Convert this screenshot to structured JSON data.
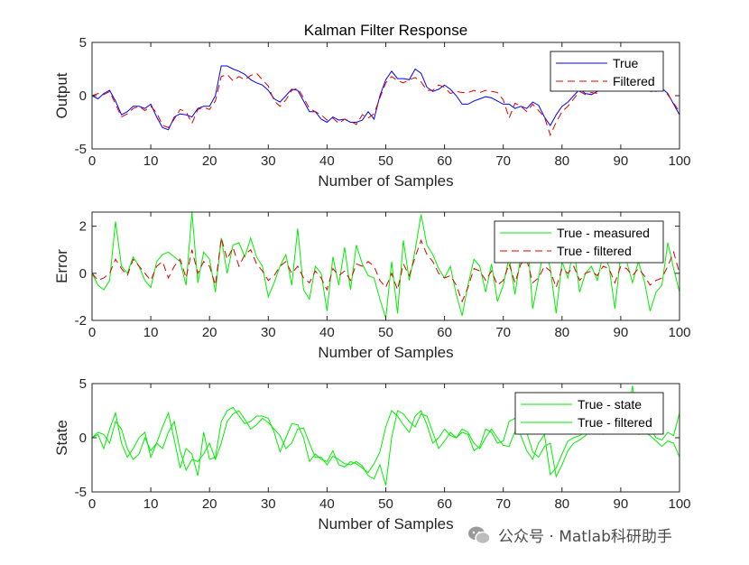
{
  "watermark": "公众号 · Matlab科研助手",
  "colors": {
    "axis": "#262626",
    "green": "#00ee00",
    "blue": "#0000ff",
    "red": "#dd0000"
  },
  "chart_data": [
    {
      "type": "line",
      "title": "Kalman Filter Response",
      "xlabel": "Number of Samples",
      "ylabel": "Output",
      "xlim": [
        0,
        100
      ],
      "ylim": [
        -5,
        5
      ],
      "xticks": [
        "0",
        "10",
        "20",
        "30",
        "40",
        "50",
        "60",
        "70",
        "80",
        "90",
        "100"
      ],
      "yticks": [
        "5",
        "0",
        "-5"
      ],
      "legend": {
        "position": "top-right",
        "entries": [
          "True",
          "Filtered"
        ]
      },
      "series": [
        {
          "name": "True",
          "color": "#0000ff",
          "dash": "",
          "values": [
            0,
            -0.3,
            0.2,
            0.5,
            -0.5,
            -1.8,
            -1.5,
            -1,
            -1,
            -1.2,
            -0.8,
            -2,
            -3,
            -3.2,
            -2,
            -1.7,
            -1.8,
            -2,
            -1.2,
            -1,
            -1,
            0,
            2.8,
            2.8,
            2.5,
            2.3,
            2,
            1.5,
            1.2,
            1,
            0.5,
            -0.3,
            -0.6,
            0,
            0.6,
            0.5,
            -0.5,
            -1.5,
            -1.5,
            -2.2,
            -2.5,
            -2,
            -2.3,
            -2.2,
            -2.5,
            -2.5,
            -2.3,
            -1.5,
            -2.2,
            0,
            1.5,
            2.3,
            1.6,
            1.6,
            1.5,
            2.5,
            2.1,
            0.8,
            0.4,
            0.6,
            1,
            0.6,
            0,
            -0.8,
            -0.8,
            -0.5,
            -0.3,
            -0.1,
            -0.2,
            -0.5,
            -0.8,
            -0.8,
            -1.2,
            -1,
            -1.2,
            -0.6,
            -0.9,
            -2,
            -2.8,
            -1.8,
            -1,
            -0.6,
            0,
            0.6,
            0.2,
            0.1,
            0.4,
            1,
            1,
            0.5,
            1.2,
            1,
            1.3,
            1.5,
            1.2,
            0.5,
            0.4,
            0.7,
            0.2,
            -0.8,
            -1.8
          ]
        },
        {
          "name": "Filtered",
          "color": "#dd0000",
          "dash": "8 5",
          "values": [
            0,
            0.2,
            0.1,
            0.4,
            -0.8,
            -2,
            -1.7,
            -1.2,
            -1,
            -1.4,
            -1,
            -1.6,
            -2.8,
            -3,
            -2.2,
            -1.3,
            -1.5,
            -2.6,
            -1.3,
            -1.1,
            -1.3,
            -0.5,
            1.8,
            2,
            1.4,
            1.8,
            1.5,
            1.9,
            2.1,
            1.5,
            0.9,
            -0.5,
            -1,
            -0.4,
            0.5,
            0.7,
            -0.2,
            -1.2,
            -1.5,
            -1.8,
            -2.3,
            -2.1,
            -2.6,
            -2.2,
            -2.4,
            -2.7,
            -1.8,
            -2.1,
            -1.7,
            -0.2,
            1.2,
            1.8,
            1.4,
            1.2,
            1.5,
            1.7,
            1.3,
            0.5,
            0.5,
            1,
            0.8,
            0.2,
            0.4,
            0.3,
            0.3,
            0.5,
            0.3,
            0.5,
            0.4,
            0.3,
            -0.4,
            -2.1,
            -0.7,
            -1,
            -1.5,
            -0.8,
            -1.4,
            -2,
            -3.7,
            -2.5,
            -1.5,
            -1,
            -0.3,
            0.4,
            0.1,
            0.3,
            0.2,
            0.9,
            0.9,
            0.4,
            1.1,
            1,
            1.2,
            1.4,
            1.1,
            0.4,
            0.4,
            0.6,
            0.1,
            -0.7,
            -1.5
          ]
        }
      ]
    },
    {
      "type": "line",
      "title": "",
      "xlabel": "Number of Samples",
      "ylabel": "Error",
      "xlim": [
        0,
        100
      ],
      "ylim": [
        -2,
        2.6
      ],
      "xticks": [
        "0",
        "10",
        "20",
        "30",
        "40",
        "50",
        "60",
        "70",
        "80",
        "90",
        "100"
      ],
      "yticks": [
        "2",
        "0",
        "-2"
      ],
      "legend": {
        "position": "top-right",
        "entries": [
          "True - measured",
          "True - filtered"
        ]
      },
      "series": [
        {
          "name": "True - measured",
          "color": "#00ee00",
          "dash": "",
          "values": [
            0,
            -0.5,
            -0.7,
            -0.3,
            2.2,
            0.3,
            0,
            0.7,
            0.3,
            -0.3,
            -0.6,
            0.5,
            0.8,
            0.9,
            0.7,
            0.5,
            -0.5,
            2.6,
            -0.4,
            0.9,
            0.6,
            -0.8,
            1.5,
            0,
            1.2,
            1.3,
            0.7,
            1.5,
            0.7,
            0.3,
            -1,
            -0.4,
            0.3,
            0.8,
            -0.5,
            1.9,
            -0.7,
            -1.1,
            0.3,
            0,
            -1.6,
            0.7,
            -0.5,
            1.1,
            -0.7,
            1.2,
            0.4,
            -0.1,
            -0.2,
            -1.1,
            -1.9,
            0.5,
            -1.7,
            1.4,
            -0.3,
            1,
            2.5,
            1.2,
            0.8,
            0.2,
            -0.2,
            0.3,
            -0.9,
            -1.8,
            -0.5,
            0.6,
            0.3,
            -0.8,
            0.4,
            -1.2,
            -0.5,
            0.7,
            -0.9,
            0.8,
            1.8,
            -1.5,
            -0.2,
            1.2,
            0.2,
            -1.7,
            0.5,
            -0.2,
            1.1,
            -0.8,
            0,
            0.3,
            -0.3,
            0.8,
            0.3,
            -1.5,
            0.8,
            0.5,
            -0.4,
            0.5,
            -0.3,
            -1.6,
            -0.8,
            -0.5,
            1.3,
            0.2,
            -0.8
          ]
        },
        {
          "name": "True - filtered",
          "color": "#dd0000",
          "dash": "8 5",
          "values": [
            0,
            -0.3,
            -0.2,
            0,
            0.6,
            0.2,
            -0.1,
            0.6,
            0.3,
            0,
            -0.3,
            0.3,
            0.5,
            -0.2,
            0.3,
            0.6,
            -0.2,
            1,
            0,
            0.5,
            0.3,
            -0.5,
            1.5,
            0.6,
            1.1,
            0.3,
            0.8,
            1,
            0.4,
            0.1,
            -0.3,
            -0.1,
            0.3,
            0.5,
            0,
            0.3,
            -0.2,
            -0.4,
            0.1,
            -0.2,
            -0.7,
            0.2,
            -0.1,
            0.1,
            -0.3,
            0.4,
            0.3,
            0.5,
            0.3,
            -0.3,
            -0.6,
            0,
            -0.7,
            0.4,
            -0.1,
            0.7,
            1.4,
            0.8,
            0.5,
            0,
            -0.2,
            -0.1,
            -0.5,
            -1.2,
            -0.6,
            0.2,
            0.1,
            -0.3,
            0.1,
            -0.5,
            -0.3,
            0.4,
            -0.4,
            0.4,
            0.6,
            -0.4,
            -0.2,
            0.3,
            0.1,
            -0.6,
            0.2,
            0,
            0.3,
            -0.3,
            0,
            0.1,
            -0.1,
            0.3,
            0.2,
            -0.4,
            0.3,
            0.2,
            -0.1,
            0.2,
            -0.1,
            -0.5,
            -0.3,
            -0.2,
            0.3,
            0.9,
            0
          ]
        }
      ]
    },
    {
      "type": "line",
      "title": "",
      "xlabel": "Number of Samples",
      "ylabel": "State",
      "xlim": [
        0,
        100
      ],
      "ylim": [
        -5,
        5
      ],
      "xticks": [
        "0",
        "10",
        "20",
        "30",
        "40",
        "50",
        "60",
        "70",
        "80",
        "90",
        "100"
      ],
      "yticks": [
        "5",
        "0",
        "-5"
      ],
      "legend": {
        "position": "top-right",
        "entries": [
          "True - state",
          "True - filtered"
        ]
      },
      "series": [
        {
          "name": "True - state",
          "color": "#00ee00",
          "dash": "",
          "values": [
            0,
            0.3,
            -1,
            0.8,
            2.3,
            -0.5,
            -1.8,
            -1,
            0,
            0.5,
            -1.8,
            -0.5,
            1,
            2.3,
            -0.2,
            -2.8,
            -1,
            -1.5,
            -3.5,
            0.5,
            -2,
            -1.8,
            1.5,
            2.5,
            2.8,
            2,
            1.3,
            1.5,
            2,
            2,
            1.8,
            0.5,
            -1.3,
            0,
            1.3,
            1.2,
            0,
            -2.2,
            -1.5,
            -2,
            -2.2,
            -1.2,
            -2.5,
            -2.7,
            -2.2,
            -2.4,
            -2.8,
            -3.2,
            -2.4,
            -1.3,
            1,
            2.5,
            2,
            1.2,
            0.5,
            2,
            2.5,
            1.2,
            -0.5,
            0,
            0.8,
            0.2,
            0,
            0.5,
            0.3,
            -1.2,
            -0.8,
            0.8,
            0.5,
            -0.5,
            -0.3,
            1.5,
            1.8,
            0.2,
            -1.2,
            -2,
            -0.5,
            0.3,
            -3.4,
            -2.8,
            -1.5,
            -0.3,
            0,
            0.2,
            0.5,
            1,
            0.5,
            0.8,
            0.8,
            0.5,
            1.2,
            1.5,
            4.8,
            0.5,
            1.3,
            0.8,
            0,
            -0.2,
            0.5,
            0.2,
            2.3
          ]
        },
        {
          "name": "True - filtered",
          "color": "#00ee00",
          "dash": "",
          "values": [
            0,
            0.5,
            0.3,
            -0.5,
            1.5,
            0.8,
            -1,
            -2,
            -1.5,
            0,
            -1.2,
            -0.5,
            -1,
            0.5,
            1.5,
            -1.2,
            -3,
            -2,
            -2.2,
            -1.5,
            -0.5,
            -2,
            -0.5,
            1.5,
            2.2,
            2.5,
            1.7,
            0.8,
            1.2,
            1.8,
            1.4,
            0.8,
            0.2,
            -1,
            -0.5,
            0.8,
            0.9,
            -0.5,
            -1.8,
            -1.8,
            -2.5,
            -1.7,
            -2,
            -2.4,
            -2.5,
            -2.2,
            -2.6,
            -3.5,
            -3.8,
            -2.5,
            -4.4,
            0,
            2.5,
            2.2,
            1.5,
            1,
            2.2,
            2,
            0.5,
            -1,
            -0.3,
            0.5,
            0,
            0.8,
            0.5,
            -0.5,
            -1,
            0,
            0.8,
            0,
            -0.7,
            -0.8,
            0.6,
            1.5,
            0.5,
            -1.3,
            -1.8,
            -0.8,
            -0.5,
            -3.6,
            -2.5,
            -1.2,
            -0.5,
            -0.2,
            0.2,
            0.8,
            0.7,
            0.3,
            0.8,
            0.6,
            0.9,
            1.3,
            1,
            0.3,
            0.5,
            0.2,
            -0.3,
            -0.8,
            -0.3,
            -0.5,
            -1.8
          ]
        }
      ]
    }
  ]
}
